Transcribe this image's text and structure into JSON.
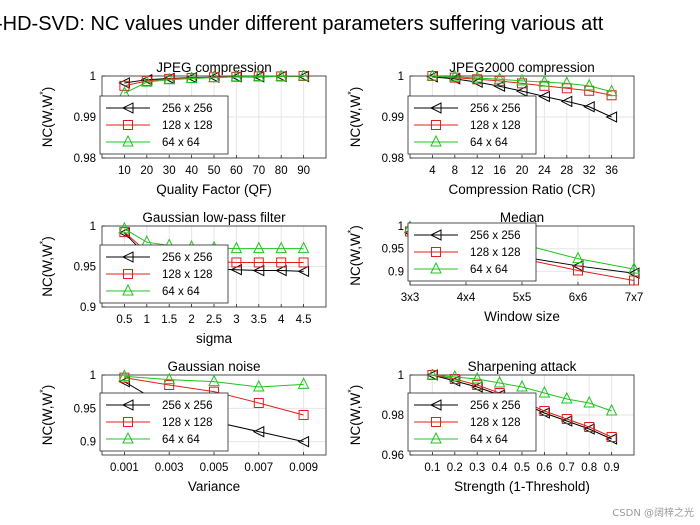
{
  "figure": {
    "title": "-HD-SVD: NC values under different parameters suffering various att",
    "watermark": "CSDN @阔梓之光"
  },
  "chart_data": [
    {
      "type": "line",
      "title": "JPEG compression",
      "xlabel": "Quality Factor (QF)",
      "ylabel": "NC(W,W*)",
      "x": [
        10,
        20,
        30,
        40,
        50,
        60,
        70,
        80,
        90
      ],
      "xticks": [
        10,
        20,
        30,
        40,
        50,
        60,
        70,
        80,
        90
      ],
      "xtick_labels": [
        "10",
        "20",
        "30",
        "40",
        "50",
        "60",
        "70",
        "80",
        "90"
      ],
      "xlim": [
        0,
        100
      ],
      "ylim": [
        0.98,
        1.0
      ],
      "yticks": [
        0.98,
        0.99,
        1.0
      ],
      "ytick_labels": [
        "0.98",
        "0.99",
        "1"
      ],
      "legend_position": "left",
      "series": [
        {
          "name": "256 x 256",
          "color": "#000000",
          "marker": "triangle-left",
          "values": [
            0.9983,
            0.9991,
            0.9994,
            0.9996,
            0.9997,
            0.9998,
            0.9998,
            0.9999,
            0.9999
          ]
        },
        {
          "name": "128 x 128",
          "color": "#e0201b",
          "marker": "square",
          "values": [
            0.9976,
            0.9988,
            0.9993,
            0.9995,
            0.9997,
            0.9998,
            0.9999,
            0.9999,
            1.0
          ]
        },
        {
          "name": "64 x 64",
          "color": "#1fc41f",
          "marker": "triangle-up",
          "values": [
            0.9958,
            0.9985,
            0.9991,
            0.9994,
            0.9996,
            0.9998,
            0.9999,
            0.9999,
            1.0
          ]
        }
      ]
    },
    {
      "type": "line",
      "title": "JPEG2000 compression",
      "xlabel": "Compression Ratio (CR)",
      "ylabel": "NC(W,W*)",
      "x": [
        4,
        8,
        12,
        16,
        20,
        24,
        28,
        32,
        36
      ],
      "xticks": [
        4,
        8,
        12,
        16,
        20,
        24,
        28,
        32,
        36
      ],
      "xtick_labels": [
        "4",
        "8",
        "12",
        "16",
        "20",
        "24",
        "28",
        "32",
        "36"
      ],
      "xlim": [
        0,
        40
      ],
      "ylim": [
        0.98,
        1.0
      ],
      "yticks": [
        0.98,
        0.99,
        1.0
      ],
      "ytick_labels": [
        "0.98",
        "0.99",
        "1"
      ],
      "legend_position": "left",
      "series": [
        {
          "name": "256 x 256",
          "color": "#000000",
          "marker": "triangle-left",
          "values": [
            0.9998,
            0.9993,
            0.9985,
            0.9975,
            0.9963,
            0.995,
            0.9938,
            0.9925,
            0.99
          ]
        },
        {
          "name": "128 x 128",
          "color": "#e0201b",
          "marker": "square",
          "values": [
            1.0,
            0.9996,
            0.9992,
            0.9988,
            0.9982,
            0.9976,
            0.997,
            0.9964,
            0.9953
          ]
        },
        {
          "name": "64 x 64",
          "color": "#1fc41f",
          "marker": "triangle-up",
          "values": [
            1.0,
            0.9998,
            0.9995,
            0.9992,
            0.9988,
            0.9985,
            0.9982,
            0.9976,
            0.9962
          ]
        }
      ]
    },
    {
      "type": "line",
      "title": "Gaussian low-pass filter",
      "xlabel": "sigma",
      "ylabel": "NC(W,W*)",
      "x": [
        0.5,
        1,
        1.5,
        2,
        2.5,
        3,
        3.5,
        4,
        4.5
      ],
      "xticks": [
        0.5,
        1,
        1.5,
        2,
        2.5,
        3,
        3.5,
        4,
        4.5
      ],
      "xtick_labels": [
        "0.5",
        "1",
        "1.5",
        "2",
        "2.5",
        "3",
        "3.5",
        "4",
        "4.5"
      ],
      "xlim": [
        0,
        5
      ],
      "ylim": [
        0.9,
        1.0
      ],
      "yticks": [
        0.9,
        0.95,
        1.0
      ],
      "ytick_labels": [
        "0.9",
        "0.95",
        "1"
      ],
      "legend_position": "left",
      "series": [
        {
          "name": "256 x 256",
          "color": "#000000",
          "marker": "triangle-left",
          "values": [
            0.9915,
            0.963,
            0.952,
            0.949,
            0.947,
            0.946,
            0.945,
            0.945,
            0.944
          ]
        },
        {
          "name": "128 x 128",
          "color": "#e0201b",
          "marker": "square",
          "values": [
            0.9925,
            0.968,
            0.96,
            0.957,
            0.956,
            0.955,
            0.955,
            0.955,
            0.955
          ]
        },
        {
          "name": "64 x 64",
          "color": "#1fc41f",
          "marker": "triangle-up",
          "values": [
            0.9965,
            0.98,
            0.976,
            0.974,
            0.973,
            0.972,
            0.972,
            0.972,
            0.972
          ]
        }
      ]
    },
    {
      "type": "line",
      "title": "Median",
      "xlabel": "Window size",
      "ylabel": "NC(W,W*)",
      "x": [
        1,
        2,
        3,
        4,
        5
      ],
      "xticks": [
        1,
        2,
        3,
        4,
        5
      ],
      "xtick_labels": [
        "3x3",
        "4x4",
        "5x5",
        "6x6",
        "7x7"
      ],
      "xlim": [
        1,
        5
      ],
      "ylim": [
        0.87,
        1.0
      ],
      "yticks": [
        0.9,
        0.95,
        1.0
      ],
      "ytick_labels": [
        "0.9",
        "0.95",
        "1"
      ],
      "legend_position": "left",
      "series": [
        {
          "name": "256 x 256",
          "color": "#000000",
          "marker": "triangle-left",
          "values": [
            0.985,
            0.952,
            0.932,
            0.912,
            0.896
          ]
        },
        {
          "name": "128 x 128",
          "color": "#e0201b",
          "marker": "square",
          "values": [
            0.988,
            0.952,
            0.928,
            0.902,
            0.88
          ]
        },
        {
          "name": "64 x 64",
          "color": "#1fc41f",
          "marker": "triangle-up",
          "values": [
            0.997,
            0.978,
            0.96,
            0.928,
            0.905
          ]
        }
      ]
    },
    {
      "type": "line",
      "title": "Gaussian noise",
      "xlabel": "Variance",
      "ylabel": "NC(W,W*)",
      "x": [
        0.001,
        0.003,
        0.005,
        0.007,
        0.009
      ],
      "xticks": [
        0.001,
        0.003,
        0.005,
        0.007,
        0.009
      ],
      "xtick_labels": [
        "0.001",
        "0.003",
        "0.005",
        "0.007",
        "0.009"
      ],
      "xlim": [
        0,
        0.01
      ],
      "ylim": [
        0.88,
        1.0
      ],
      "yticks": [
        0.9,
        0.95,
        1.0
      ],
      "ytick_labels": [
        "0.9",
        "0.95",
        "1"
      ],
      "legend_position": "left",
      "series": [
        {
          "name": "256 x 256",
          "color": "#000000",
          "marker": "triangle-left",
          "values": [
            0.99,
            0.95,
            0.93,
            0.915,
            0.9
          ]
        },
        {
          "name": "128 x 128",
          "color": "#e0201b",
          "marker": "square",
          "values": [
            0.996,
            0.985,
            0.975,
            0.958,
            0.94
          ]
        },
        {
          "name": "64 x 64",
          "color": "#1fc41f",
          "marker": "triangle-up",
          "values": [
            0.998,
            0.993,
            0.99,
            0.982,
            0.986
          ]
        }
      ]
    },
    {
      "type": "line",
      "title": "Sharpening attack",
      "xlabel": "Strength (1-Threshold)",
      "ylabel": "NC(W,W*)",
      "x": [
        0.1,
        0.2,
        0.3,
        0.4,
        0.5,
        0.6,
        0.7,
        0.8,
        0.9
      ],
      "xticks": [
        0.1,
        0.2,
        0.3,
        0.4,
        0.5,
        0.6,
        0.7,
        0.8,
        0.9
      ],
      "xtick_labels": [
        "0.1",
        "0.2",
        "0.3",
        "0.4",
        "0.5",
        "0.6",
        "0.7",
        "0.8",
        "0.9"
      ],
      "xlim": [
        0,
        1.0
      ],
      "ylim": [
        0.96,
        1.0
      ],
      "yticks": [
        0.96,
        0.98,
        1.0
      ],
      "ytick_labels": [
        "0.96",
        "0.98",
        "1"
      ],
      "legend_position": "left",
      "series": [
        {
          "name": "256 x 256",
          "color": "#000000",
          "marker": "triangle-left",
          "values": [
            1.0,
            0.997,
            0.994,
            0.99,
            0.986,
            0.981,
            0.977,
            0.973,
            0.968
          ]
        },
        {
          "name": "128 x 128",
          "color": "#e0201b",
          "marker": "square",
          "values": [
            1.0,
            0.998,
            0.995,
            0.991,
            0.987,
            0.982,
            0.978,
            0.974,
            0.969
          ]
        },
        {
          "name": "64 x 64",
          "color": "#1fc41f",
          "marker": "triangle-up",
          "values": [
            1.0,
            0.999,
            0.998,
            0.996,
            0.994,
            0.991,
            0.988,
            0.986,
            0.982
          ]
        }
      ]
    }
  ]
}
